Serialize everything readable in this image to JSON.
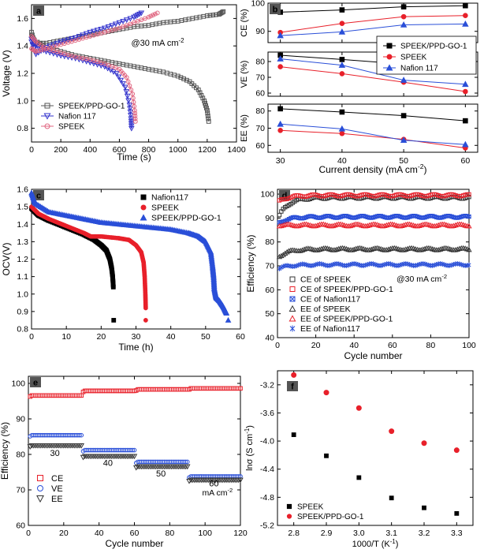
{
  "chart_data": [
    {
      "panel": "a",
      "type": "line",
      "xlabel": "Time (s)",
      "ylabel": "Voltage (V)",
      "xlim": [
        0,
        1400
      ],
      "ylim": [
        0.7,
        1.7
      ],
      "xticks": [
        0,
        200,
        400,
        600,
        800,
        1000,
        1200,
        1400
      ],
      "yticks": [
        0.8,
        1.0,
        1.2,
        1.4,
        1.6
      ],
      "annotation": "@30 mA cm",
      "annotation_sup": "-2",
      "legend": "bottom-left",
      "series": [
        {
          "name": "SPEEK/PPD-GO-1",
          "color": "#555555",
          "marker": "square",
          "charge": [
            [
              0,
              1.5
            ],
            [
              20,
              1.42
            ],
            [
              100,
              1.42
            ],
            [
              200,
              1.44
            ],
            [
              300,
              1.46
            ],
            [
              400,
              1.48
            ],
            [
              500,
              1.5
            ],
            [
              600,
              1.52
            ],
            [
              700,
              1.54
            ],
            [
              800,
              1.55
            ],
            [
              900,
              1.57
            ],
            [
              1000,
              1.58
            ],
            [
              1100,
              1.6
            ],
            [
              1200,
              1.62
            ],
            [
              1280,
              1.63
            ],
            [
              1310,
              1.65
            ]
          ],
          "discharge": [
            [
              0,
              1.47
            ],
            [
              20,
              1.44
            ],
            [
              100,
              1.39
            ],
            [
              200,
              1.36
            ],
            [
              300,
              1.33
            ],
            [
              400,
              1.31
            ],
            [
              500,
              1.29
            ],
            [
              600,
              1.27
            ],
            [
              700,
              1.25
            ],
            [
              800,
              1.23
            ],
            [
              900,
              1.21
            ],
            [
              1000,
              1.18
            ],
            [
              1080,
              1.14
            ],
            [
              1140,
              1.08
            ],
            [
              1180,
              1.0
            ],
            [
              1200,
              0.93
            ],
            [
              1210,
              0.85
            ]
          ]
        },
        {
          "name": "Nafion 117",
          "color": "#3333cc",
          "marker": "triangle-down",
          "charge": [
            [
              0,
              1.43
            ],
            [
              30,
              1.34
            ],
            [
              100,
              1.39
            ],
            [
              200,
              1.43
            ],
            [
              300,
              1.46
            ],
            [
              400,
              1.5
            ],
            [
              500,
              1.53
            ],
            [
              600,
              1.57
            ],
            [
              700,
              1.61
            ],
            [
              750,
              1.64
            ]
          ],
          "discharge": [
            [
              0,
              1.45
            ],
            [
              30,
              1.4
            ],
            [
              100,
              1.36
            ],
            [
              200,
              1.33
            ],
            [
              300,
              1.31
            ],
            [
              400,
              1.28
            ],
            [
              500,
              1.25
            ],
            [
              580,
              1.2
            ],
            [
              640,
              1.1
            ],
            [
              670,
              0.97
            ],
            [
              680,
              0.87
            ],
            [
              683,
              0.8
            ]
          ]
        },
        {
          "name": "SPEEK",
          "color": "#e06680",
          "marker": "circle",
          "charge": [
            [
              0,
              1.38
            ],
            [
              30,
              1.36
            ],
            [
              100,
              1.38
            ],
            [
              200,
              1.41
            ],
            [
              300,
              1.44
            ],
            [
              400,
              1.47
            ],
            [
              500,
              1.5
            ],
            [
              600,
              1.53
            ],
            [
              700,
              1.57
            ],
            [
              800,
              1.61
            ],
            [
              860,
              1.64
            ]
          ],
          "discharge": [
            [
              0,
              1.47
            ],
            [
              30,
              1.43
            ],
            [
              100,
              1.38
            ],
            [
              200,
              1.35
            ],
            [
              300,
              1.32
            ],
            [
              400,
              1.3
            ],
            [
              500,
              1.27
            ],
            [
              600,
              1.23
            ],
            [
              650,
              1.17
            ],
            [
              690,
              1.05
            ],
            [
              705,
              0.93
            ],
            [
              710,
              0.85
            ]
          ]
        }
      ]
    },
    {
      "panel": "b",
      "type": "line",
      "xlabel": "Current density (mA cm",
      "xlabel_sup": "-2",
      "xlabel_close": ")",
      "x": [
        30,
        40,
        50,
        60
      ],
      "xlim": [
        28,
        62
      ],
      "subplots": [
        {
          "ylabel": "CE (%)",
          "ylim": [
            86,
            100
          ],
          "yticks": [
            90,
            100
          ],
          "series": [
            {
              "name": "SPEEK/PPD-GO-1",
              "values": [
                96.8,
                97.6,
                98.7,
                99.1
              ]
            },
            {
              "name": "SPEEK",
              "values": [
                89.6,
                92.8,
                95.2,
                95.6
              ]
            },
            {
              "name": "Nafion 117",
              "values": [
                88.5,
                89.8,
                92.3,
                92.6
              ]
            }
          ]
        },
        {
          "ylabel": "VE (%)",
          "ylim": [
            58,
            86
          ],
          "yticks": [
            60,
            70,
            80
          ],
          "series": [
            {
              "name": "SPEEK/PPD-GO-1",
              "values": [
                84.0,
                81.3,
                78.4,
                75.0
              ]
            },
            {
              "name": "SPEEK",
              "values": [
                76.7,
                72.3,
                66.9,
                61.0
              ]
            },
            {
              "name": "Nafion 117",
              "values": [
                81.7,
                77.7,
                68.2,
                65.6
              ]
            }
          ]
        },
        {
          "ylabel": "EE (%)",
          "ylim": [
            56,
            84
          ],
          "yticks": [
            60,
            70,
            80
          ],
          "series": [
            {
              "name": "SPEEK/PPD-GO-1",
              "values": [
                81.3,
                79.4,
                77.3,
                74.3
              ]
            },
            {
              "name": "SPEEK",
              "values": [
                68.7,
                66.9,
                63.5,
                58.5
              ]
            },
            {
              "name": "Nafion 117",
              "values": [
                72.4,
                69.6,
                63.0,
                60.5
              ]
            }
          ]
        }
      ],
      "legend": [
        "SPEEK/PPD-GO-1",
        "SPEEK",
        "Nafion 117"
      ],
      "colors": {
        "SPEEK/PPD-GO-1": "#000000",
        "SPEEK": "#e8202a",
        "Nafion 117": "#2a4fd8"
      }
    },
    {
      "panel": "c",
      "type": "scatter",
      "xlabel": "Time (h)",
      "ylabel": "OCV(V)",
      "xlim": [
        0,
        60
      ],
      "ylim": [
        0.8,
        1.6
      ],
      "xticks": [
        0,
        10,
        20,
        30,
        40,
        50,
        60
      ],
      "yticks": [
        0.8,
        0.9,
        1.0,
        1.1,
        1.2,
        1.3,
        1.4,
        1.5,
        1.6
      ],
      "legend": "top-right",
      "series": [
        {
          "name": "Nafion117",
          "color": "#000000",
          "marker": "square",
          "points": [
            [
              0,
              1.49
            ],
            [
              2,
              1.45
            ],
            [
              5,
              1.42
            ],
            [
              10,
              1.38
            ],
            [
              15,
              1.34
            ],
            [
              18,
              1.31
            ],
            [
              20,
              1.28
            ],
            [
              21.5,
              1.25
            ],
            [
              22.5,
              1.2
            ],
            [
              23,
              1.15
            ],
            [
              23.3,
              1.1
            ],
            [
              23.5,
              1.04
            ],
            [
              23.6,
              0.85
            ]
          ]
        },
        {
          "name": "SPEEK",
          "color": "#e8202a",
          "marker": "circle",
          "points": [
            [
              0,
              1.5
            ],
            [
              2,
              1.46
            ],
            [
              5,
              1.43
            ],
            [
              10,
              1.39
            ],
            [
              15,
              1.35
            ],
            [
              17,
              1.33
            ],
            [
              20,
              1.33
            ],
            [
              25,
              1.32
            ],
            [
              28,
              1.31
            ],
            [
              30,
              1.28
            ],
            [
              31.5,
              1.24
            ],
            [
              32.2,
              1.18
            ],
            [
              32.5,
              1.1
            ],
            [
              32.7,
              1.0
            ],
            [
              32.8,
              0.92
            ],
            [
              32.8,
              0.85
            ]
          ]
        },
        {
          "name": "SPEEK/PPD-GO-1",
          "color": "#2a4fd8",
          "marker": "triangle",
          "points": [
            [
              0,
              1.58
            ],
            [
              1,
              1.52
            ],
            [
              5,
              1.47
            ],
            [
              10,
              1.45
            ],
            [
              15,
              1.43
            ],
            [
              20,
              1.41
            ],
            [
              25,
              1.4
            ],
            [
              30,
              1.39
            ],
            [
              35,
              1.38
            ],
            [
              40,
              1.37
            ],
            [
              45,
              1.35
            ],
            [
              48,
              1.33
            ],
            [
              50,
              1.3
            ],
            [
              51.5,
              1.24
            ],
            [
              52,
              1.16
            ],
            [
              52.3,
              1.1
            ],
            [
              52.5,
              1.03
            ],
            [
              53,
              0.98
            ],
            [
              54,
              0.96
            ],
            [
              55,
              0.93
            ],
            [
              56,
              0.89
            ],
            [
              56.5,
              0.85
            ]
          ]
        }
      ]
    },
    {
      "panel": "d",
      "type": "scatter",
      "xlabel": "Cycle number",
      "ylabel": "Efficiency (%)",
      "xlim": [
        0,
        100
      ],
      "ylim": [
        40,
        102
      ],
      "xticks": [
        0,
        20,
        40,
        60,
        80,
        100
      ],
      "yticks": [
        40,
        50,
        60,
        70,
        80,
        90,
        100
      ],
      "annotation": "@30 mA cm",
      "annotation_sup": "-2",
      "legend": "bottom-left",
      "series": [
        {
          "name": "CE of SPEEK",
          "color": "#333333",
          "marker": "square",
          "start": 91,
          "plateau": 98.5
        },
        {
          "name": "CE of SPEEK/PPD-GO-1",
          "color": "#e8202a",
          "marker": "square",
          "start": 97,
          "plateau": 99.5
        },
        {
          "name": "CE of Nafion117",
          "color": "#2a4fd8",
          "marker": "x-square",
          "start": 88,
          "plateau": 90.5
        },
        {
          "name": "EE of SPEEK",
          "color": "#333333",
          "marker": "triangle",
          "start": 74,
          "plateau": 77
        },
        {
          "name": "EE of SPEEK/PPD-GO-1",
          "color": "#e8202a",
          "marker": "triangle",
          "start": 87,
          "plateau": 87
        },
        {
          "name": "EE of Nafion117",
          "color": "#2a4fd8",
          "marker": "x-star",
          "start": 69,
          "plateau": 70.5
        }
      ]
    },
    {
      "panel": "e",
      "type": "scatter",
      "xlabel": "Cycle number",
      "ylabel": "Efficiency (%)",
      "xlim": [
        0,
        120
      ],
      "ylim": [
        60,
        102
      ],
      "xticks": [
        0,
        20,
        40,
        60,
        80,
        100,
        120
      ],
      "yticks": [
        60,
        70,
        80,
        90,
        100
      ],
      "rate_labels": [
        "30",
        "40",
        "50",
        "60",
        "mA cm"
      ],
      "rate_sup": "-2",
      "legend": "bottom-left",
      "series": [
        {
          "name": "CE",
          "color": "#e8202a",
          "marker": "square",
          "segments": [
            96.6,
            97.9,
            98.3,
            98.6
          ]
        },
        {
          "name": "VE",
          "color": "#2a4fd8",
          "marker": "circle",
          "segments": [
            85.4,
            81.2,
            77.9,
            73.8
          ]
        },
        {
          "name": "EE",
          "color": "#333333",
          "marker": "triangle-down",
          "segments": [
            82.5,
            79.5,
            76.6,
            72.8
          ]
        }
      ]
    },
    {
      "panel": "f",
      "type": "scatter",
      "xlabel": "1000/T (K",
      "xlabel_sup": "-1",
      "xlabel_close": ")",
      "ylabel": "lnσ (S cm",
      "ylabel_sup": "-1",
      "ylabel_close": ")",
      "xlim": [
        2.75,
        3.35
      ],
      "ylim": [
        -5.2,
        -3.0
      ],
      "xticks": [
        2.8,
        2.9,
        3.0,
        3.1,
        3.2,
        3.3
      ],
      "yticks": [
        -5.2,
        -4.8,
        -4.4,
        -4.0,
        -3.6,
        -3.2
      ],
      "legend": "bottom-left",
      "series": [
        {
          "name": "SPEEK",
          "color": "#000000",
          "marker": "square",
          "x": [
            2.8,
            2.9,
            3.0,
            3.1,
            3.2,
            3.3
          ],
          "y": [
            -3.91,
            -4.21,
            -4.52,
            -4.81,
            -4.95,
            -5.03
          ]
        },
        {
          "name": "SPEEK/PPD-GO-1",
          "color": "#e8202a",
          "marker": "circle",
          "x": [
            2.8,
            2.9,
            3.0,
            3.1,
            3.2,
            3.3
          ],
          "y": [
            -3.06,
            -3.31,
            -3.53,
            -3.86,
            -4.03,
            -4.13
          ]
        }
      ]
    }
  ]
}
